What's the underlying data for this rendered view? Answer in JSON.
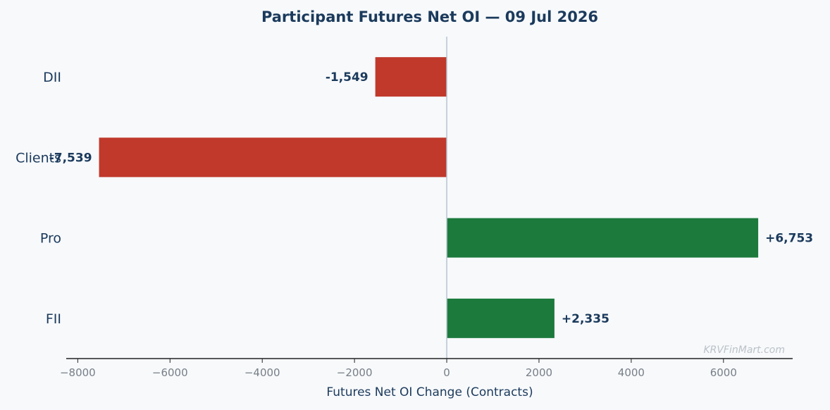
{
  "chart_data": {
    "type": "bar",
    "orientation": "horizontal",
    "title": "Participant Futures Net OI — 09 Jul 2026",
    "xlabel": "Futures Net OI Change (Contracts)",
    "ylabel": "",
    "categories": [
      "DII",
      "Clients",
      "Pro",
      "FII"
    ],
    "values": [
      -1549,
      -7539,
      6753,
      2335
    ],
    "value_labels": [
      "-1,549",
      "-7,539",
      "+6,753",
      "+2,335"
    ],
    "xlim": [
      -8250,
      7500
    ],
    "xticks": [
      -8000,
      -6000,
      -4000,
      -2000,
      0,
      2000,
      4000,
      6000
    ],
    "xtick_labels": [
      "−8000",
      "−6000",
      "−4000",
      "−2000",
      "0",
      "2000",
      "4000",
      "6000"
    ],
    "grid": false,
    "colors": {
      "positive": "#1c7a3c",
      "negative": "#c0392b",
      "zero_line": "#b8c4d0",
      "text": "#1b3a5c"
    },
    "watermark": "KRVFinMart.com"
  }
}
